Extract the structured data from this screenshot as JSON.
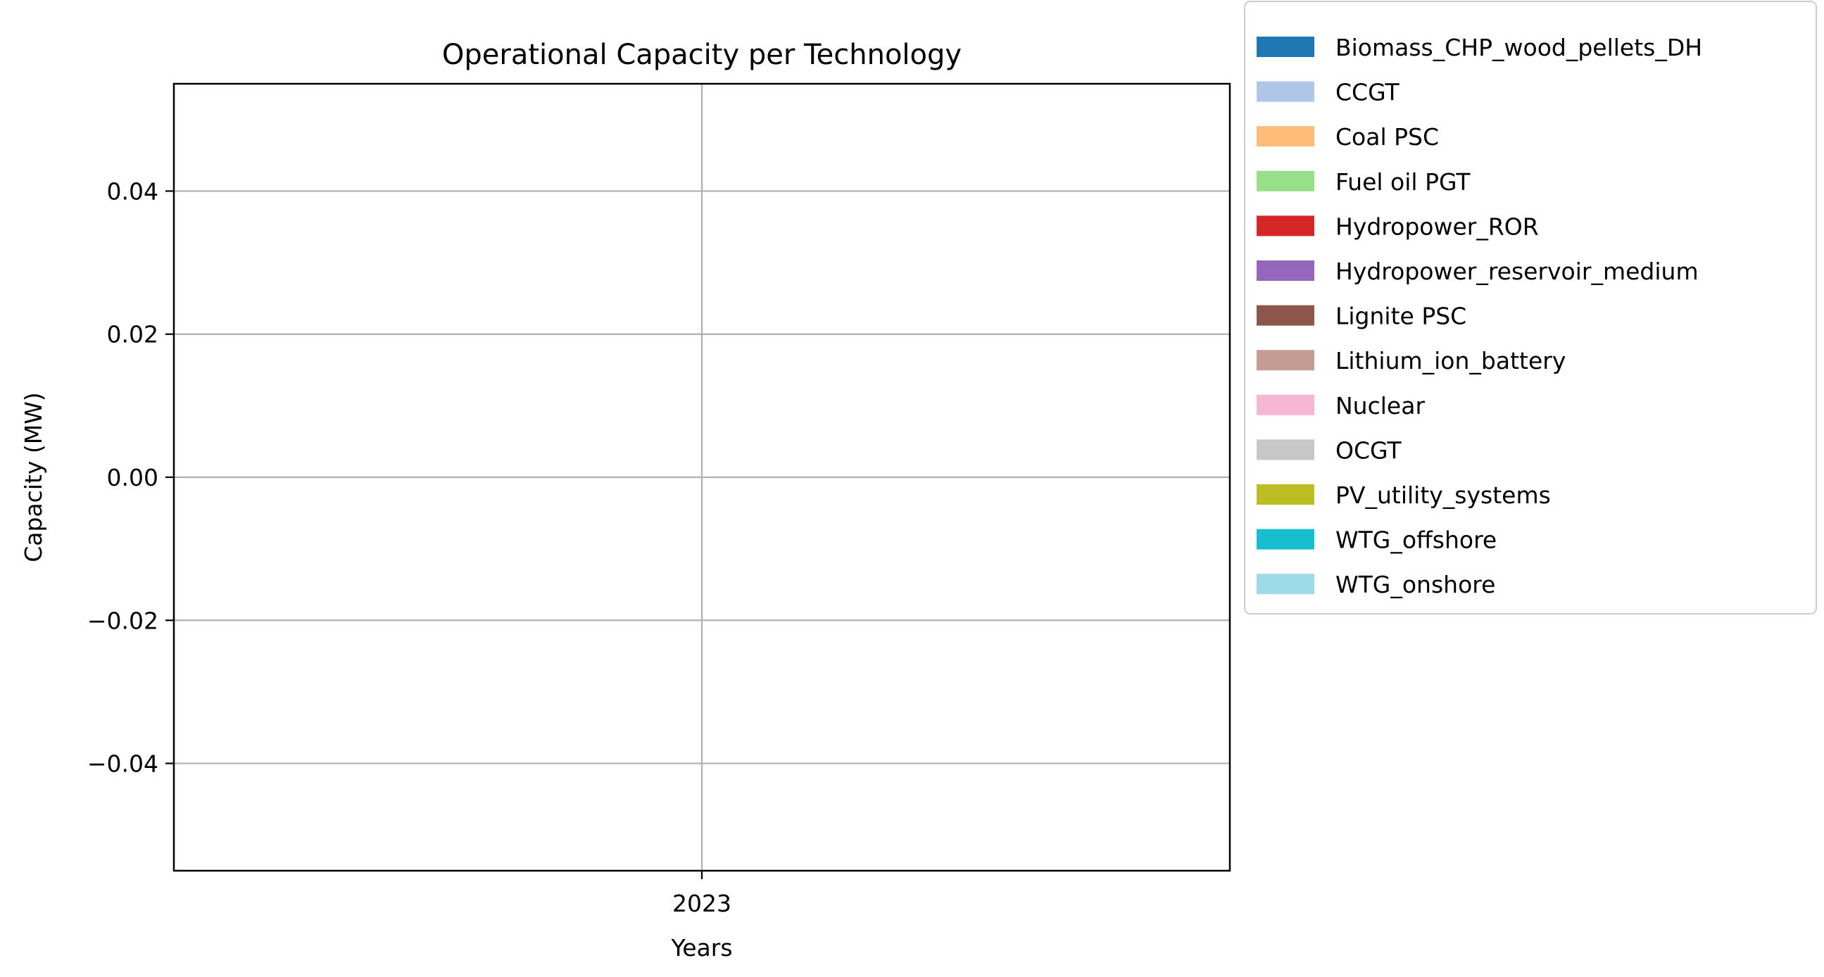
{
  "chart_data": {
    "type": "area",
    "title": "Operational Capacity per Technology",
    "xlabel": "Years",
    "ylabel": "Capacity (MW)",
    "categories": [
      "2023"
    ],
    "ylim": [
      -0.055,
      0.055
    ],
    "yticks": [
      -0.04,
      -0.02,
      0.0,
      0.02,
      0.04
    ],
    "ytick_labels": [
      "−0.04",
      "−0.02",
      "0.00",
      "0.02",
      "0.04"
    ],
    "grid": true,
    "legend_position": "outside-right",
    "series": [
      {
        "name": "Biomass_CHP_wood_pellets_DH",
        "color": "#1f77b4",
        "values": [
          0
        ]
      },
      {
        "name": "CCGT",
        "color": "#aec7e8",
        "values": [
          0
        ]
      },
      {
        "name": "Coal PSC",
        "color": "#ffbb78",
        "values": [
          0
        ]
      },
      {
        "name": "Fuel oil PGT",
        "color": "#98df8a",
        "values": [
          0
        ]
      },
      {
        "name": "Hydropower_ROR",
        "color": "#d62728",
        "values": [
          0
        ]
      },
      {
        "name": "Hydropower_reservoir_medium",
        "color": "#9467bd",
        "values": [
          0
        ]
      },
      {
        "name": "Lignite PSC",
        "color": "#8c564b",
        "values": [
          0
        ]
      },
      {
        "name": "Lithium_ion_battery",
        "color": "#c49c94",
        "values": [
          0
        ]
      },
      {
        "name": "Nuclear",
        "color": "#f7b6d2",
        "values": [
          0
        ]
      },
      {
        "name": "OCGT",
        "color": "#c7c7c7",
        "values": [
          0
        ]
      },
      {
        "name": "PV_utility_systems",
        "color": "#bcbd22",
        "values": [
          0
        ]
      },
      {
        "name": "WTG_offshore",
        "color": "#17becf",
        "values": [
          0
        ]
      },
      {
        "name": "WTG_onshore",
        "color": "#9edae5",
        "values": [
          0
        ]
      }
    ]
  }
}
